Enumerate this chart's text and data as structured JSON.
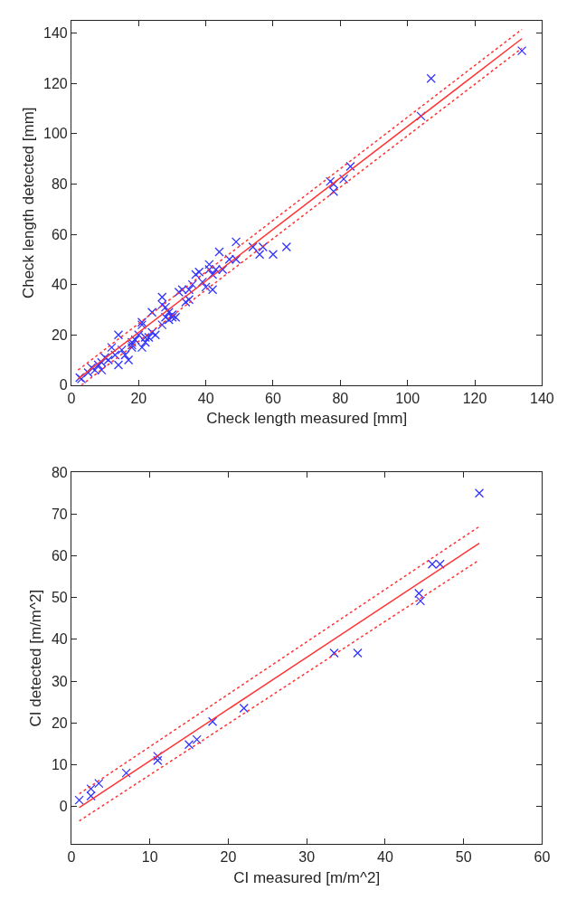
{
  "chart_data": [
    {
      "type": "scatter",
      "xlabel": "Check length measured [mm]",
      "ylabel": "Check length detected [mm]",
      "xlim": [
        0,
        140
      ],
      "ylim": [
        0,
        145
      ],
      "xticks": [
        0,
        20,
        40,
        60,
        80,
        100,
        120,
        140
      ],
      "yticks": [
        0,
        20,
        40,
        60,
        80,
        100,
        120,
        140
      ],
      "series": [
        {
          "color": "#3333ff",
          "marker": "cross",
          "x": [
            2.5,
            3,
            5,
            6,
            7,
            8,
            9,
            9,
            10,
            11,
            12,
            13,
            14,
            14,
            15,
            16,
            17,
            18,
            18,
            18,
            19,
            20,
            21,
            21,
            21,
            22,
            22,
            23,
            24,
            24,
            25,
            27,
            27,
            27,
            28,
            28,
            29,
            29,
            30,
            30,
            31,
            32,
            33,
            34,
            35,
            35,
            36,
            37,
            38,
            39,
            40,
            41,
            41,
            42,
            42,
            43,
            44,
            45,
            47,
            49,
            49,
            54,
            56,
            57,
            60,
            64,
            77,
            78,
            78,
            81,
            83,
            104,
            107,
            134
          ],
          "values": [
            3,
            2.5,
            5,
            7,
            6,
            8,
            6,
            9,
            11,
            10,
            15,
            12,
            8,
            20,
            14,
            12,
            10,
            15,
            16,
            17,
            18,
            20,
            15,
            25,
            24,
            17,
            19,
            19,
            21,
            29,
            20,
            35,
            24,
            32,
            31,
            27,
            29,
            26,
            28,
            27,
            27,
            37,
            38,
            33,
            38,
            34,
            40,
            44,
            45,
            41,
            39,
            48,
            46,
            38,
            44,
            46,
            53,
            46,
            50,
            57,
            50,
            55,
            52,
            55,
            52,
            55,
            81,
            80,
            77,
            82,
            87,
            107,
            122,
            133
          ]
        },
        {
          "type": "line",
          "color": "#ff3333",
          "marker": "none",
          "line_style": "solid",
          "x": [
            2,
            134
          ],
          "values": [
            2.5,
            137.8
          ]
        },
        {
          "type": "line",
          "color": "#ff3333",
          "marker": "none",
          "line_style": "dotted",
          "x": [
            2,
            134
          ],
          "values": [
            6,
            141.5
          ]
        },
        {
          "type": "line",
          "color": "#ff3333",
          "marker": "none",
          "line_style": "dotted",
          "x": [
            3,
            134
          ],
          "values": [
            0,
            134
          ]
        }
      ]
    },
    {
      "type": "scatter",
      "xlabel": "CI measured [m/m^2]",
      "ylabel": "CI detected [m/m^2]",
      "xlim": [
        0,
        60
      ],
      "ylim": [
        -9,
        80
      ],
      "xticks": [
        0,
        10,
        20,
        30,
        40,
        50,
        60
      ],
      "yticks": [
        0,
        10,
        20,
        30,
        40,
        50,
        60,
        70,
        80
      ],
      "series": [
        {
          "color": "#3333ff",
          "marker": "cross",
          "x": [
            1,
            2.5,
            2.5,
            3.5,
            7,
            11,
            11,
            15,
            16,
            18,
            22,
            33.5,
            36.5,
            44.3,
            44.5,
            46,
            47,
            52
          ],
          "values": [
            1.5,
            4.2,
            2.5,
            5.5,
            8,
            12,
            11,
            14.8,
            16,
            20.3,
            23.5,
            36.7,
            36.7,
            51,
            49.2,
            58,
            58,
            75
          ]
        },
        {
          "type": "line",
          "color": "#ff3333",
          "marker": "none",
          "line_style": "solid",
          "x": [
            1,
            52
          ],
          "values": [
            -0.3,
            63
          ]
        },
        {
          "type": "line",
          "color": "#ff3333",
          "marker": "none",
          "line_style": "dotted",
          "x": [
            1,
            52
          ],
          "values": [
            3,
            67
          ]
        },
        {
          "type": "line",
          "color": "#ff3333",
          "marker": "none",
          "line_style": "dotted",
          "x": [
            1,
            52
          ],
          "values": [
            -3.5,
            59
          ]
        }
      ]
    }
  ]
}
